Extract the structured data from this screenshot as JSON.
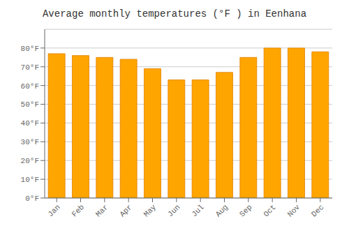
{
  "chart_data": {
    "type": "bar",
    "title": "Average monthly temperatures (°F ) in Eenhana",
    "categories": [
      "Jan",
      "Feb",
      "Mar",
      "Apr",
      "May",
      "Jun",
      "Jul",
      "Aug",
      "Sep",
      "Oct",
      "Nov",
      "Dec"
    ],
    "values": [
      77,
      76,
      75,
      74,
      69,
      63,
      63,
      67,
      75,
      80,
      80,
      78
    ],
    "color": "#FFA500",
    "ylim": [
      0,
      90
    ],
    "yticks": [
      {
        "value": 0,
        "label": "0°F"
      },
      {
        "value": 10,
        "label": "10°F"
      },
      {
        "value": 20,
        "label": "20°F"
      },
      {
        "value": 30,
        "label": "30°F"
      },
      {
        "value": 40,
        "label": "40°F"
      },
      {
        "value": 50,
        "label": "50°F"
      },
      {
        "value": 60,
        "label": "60°F"
      },
      {
        "value": 70,
        "label": "70°F"
      },
      {
        "value": 80,
        "label": "80°F"
      }
    ],
    "grid": true
  }
}
